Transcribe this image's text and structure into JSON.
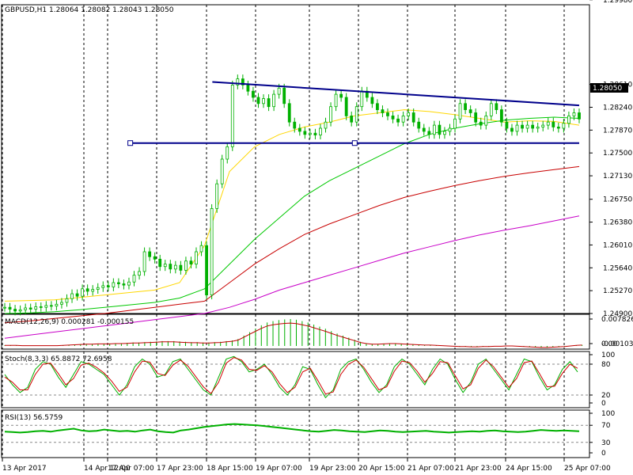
{
  "chart_data": [
    {
      "type": "candlestick",
      "title": "GBPUSD,H1  1.28064 1.28082 1.28043 1.28050",
      "symbol": "GBPUSD",
      "timeframe": "H1",
      "ohlc_last": {
        "open": 1.28064,
        "high": 1.28082,
        "low": 1.28043,
        "close": 1.2805
      },
      "price_label": "1.28050",
      "ylim": [
        1.249,
        1.299
      ],
      "y_ticks": [
        "1.29980",
        "1.28610",
        "1.28240",
        "1.27870",
        "1.27500",
        "1.27130",
        "1.26750",
        "1.26380",
        "1.26010",
        "1.25640",
        "1.25270",
        "1.24900"
      ],
      "y_tick_values": [
        1.2998,
        1.2861,
        1.2824,
        1.2787,
        1.275,
        1.2713,
        1.2675,
        1.2638,
        1.2601,
        1.2564,
        1.2527,
        1.249
      ],
      "x_ticks": [
        "13 Apr 2017",
        "14 Apr 12:00",
        "17 Apr 07:00",
        "17 Apr 23:00",
        "18 Apr 15:00",
        "19 Apr 07:00",
        "19 Apr 23:00",
        "20 Apr 15:00",
        "21 Apr 07:00",
        "21 Apr 23:00",
        "24 Apr 15:00",
        "25 Apr 07:00"
      ],
      "grid": true,
      "trendlines": [
        {
          "name": "upper-resistance",
          "from": [
            43,
            1.2865
          ],
          "to": [
            119,
            1.2827
          ],
          "color": "#00008b"
        },
        {
          "name": "horizontal-support",
          "from": [
            26,
            1.2766
          ],
          "to": [
            119,
            1.2766
          ],
          "color": "#00008b"
        }
      ],
      "candle_closes": [
        1.25,
        1.2497,
        1.2494,
        1.2496,
        1.2499,
        1.2497,
        1.2501,
        1.25,
        1.2503,
        1.2502,
        1.2505,
        1.2508,
        1.2514,
        1.2522,
        1.2518,
        1.253,
        1.2526,
        1.2529,
        1.2532,
        1.2535,
        1.2533,
        1.254,
        1.2538,
        1.2536,
        1.2541,
        1.2552,
        1.2558,
        1.259,
        1.2582,
        1.2578,
        1.2566,
        1.257,
        1.2562,
        1.2568,
        1.256,
        1.2575,
        1.257,
        1.259,
        1.26,
        1.252,
        1.266,
        1.27,
        1.274,
        1.276,
        1.286,
        1.287,
        1.286,
        1.285,
        1.284,
        1.283,
        1.2838,
        1.2825,
        1.2845,
        1.2855,
        1.283,
        1.28,
        1.279,
        1.2785,
        1.278,
        1.2782,
        1.2779,
        1.279,
        1.28,
        1.2825,
        1.2845,
        1.284,
        1.281,
        1.28,
        1.2825,
        1.285,
        1.284,
        1.283,
        1.282,
        1.2815,
        1.281,
        1.2805,
        1.28,
        1.281,
        1.2815,
        1.28,
        1.279,
        1.2785,
        1.278,
        1.2795,
        1.278,
        1.2785,
        1.279,
        1.2805,
        1.283,
        1.282,
        1.2815,
        1.28,
        1.2795,
        1.281,
        1.283,
        1.282,
        1.28,
        1.279,
        1.2785,
        1.2795,
        1.279,
        1.2795,
        1.279,
        1.2792,
        1.2795,
        1.28,
        1.2792,
        1.279,
        1.2798,
        1.281,
        1.2815,
        1.2805
      ],
      "moving_averages": [
        {
          "color": "#ffd700",
          "values": [
            1.251,
            1.2511,
            1.2512,
            1.2516,
            1.252,
            1.2524,
            1.2528,
            1.254,
            1.26,
            1.272,
            1.276,
            1.278,
            1.2792,
            1.28,
            1.281,
            1.2815,
            1.282,
            1.2817,
            1.2812,
            1.2806,
            1.28,
            1.2802,
            1.2801,
            1.2795
          ]
        },
        {
          "color": "#00c800",
          "values": [
            1.249,
            1.2491,
            1.2493,
            1.2496,
            1.25,
            1.2504,
            1.2508,
            1.2515,
            1.253,
            1.257,
            1.261,
            1.2645,
            1.268,
            1.2705,
            1.2725,
            1.2745,
            1.2765,
            1.278,
            1.279,
            1.2797,
            1.2803,
            1.2806,
            1.2808,
            1.2806
          ]
        },
        {
          "color": "#c80000",
          "values": [
            1.2475,
            1.2478,
            1.2482,
            1.2486,
            1.249,
            1.2495,
            1.25,
            1.2505,
            1.251,
            1.254,
            1.257,
            1.2595,
            1.2618,
            1.2635,
            1.265,
            1.2665,
            1.2678,
            1.2688,
            1.2697,
            1.2705,
            1.2712,
            1.2718,
            1.2723,
            1.2728
          ]
        },
        {
          "color": "#c800c8",
          "values": [
            1.245,
            1.2455,
            1.246,
            1.2465,
            1.247,
            1.2475,
            1.248,
            1.2485,
            1.249,
            1.25,
            1.2513,
            1.2528,
            1.254,
            1.2552,
            1.2564,
            1.2576,
            1.2588,
            1.2598,
            1.2608,
            1.2617,
            1.2625,
            1.2632,
            1.264,
            1.2648
          ]
        }
      ]
    },
    {
      "type": "histogram",
      "title": "MACD(12,26,9) 0.000281 -0.000155",
      "y_ticks": [
        "0.007826",
        "0.00",
        "-0.001036"
      ],
      "bars": [
        0.0002,
        0.0002,
        0.0002,
        0.0001,
        0.0001,
        0.0001,
        0.0001,
        0.0001,
        0.0001,
        0.0001,
        0.0002,
        0.0003,
        0.0004,
        0.0005,
        0.0006,
        0.0006,
        0.0007,
        0.0007,
        0.0007,
        0.0008,
        0.0008,
        0.0009,
        0.001,
        0.001,
        0.0011,
        0.0012,
        0.0013,
        0.0014,
        0.0014,
        0.0014,
        0.0013,
        0.0012,
        0.0011,
        0.0011,
        0.001,
        0.001,
        0.0011,
        0.0012,
        0.0014,
        0.0016,
        0.002,
        0.003,
        0.004,
        0.005,
        0.006,
        0.0068,
        0.0072,
        0.0075,
        0.0077,
        0.0078,
        0.0076,
        0.0072,
        0.0068,
        0.0062,
        0.0056,
        0.005,
        0.0043,
        0.0036,
        0.003,
        0.0024,
        0.0018,
        0.0012,
        0.0008,
        0.0006,
        0.0006,
        0.0007,
        0.0008,
        0.0008,
        0.0007,
        0.0006,
        0.0005,
        0.0004,
        0.0003,
        0.0003,
        0.0002,
        0.0001,
        0.0,
        -0.0001,
        -0.0002,
        -0.0002,
        -0.0003,
        -0.0003,
        -0.0002,
        -0.0002,
        -0.0001,
        -0.0001,
        0.0,
        0.0,
        -0.0001,
        -0.0002,
        -0.0003,
        -0.0004,
        -0.0005,
        -0.0005,
        -0.0004,
        -0.0003,
        -0.0002,
        0.0,
        0.0002,
        0.0003
      ]
    },
    {
      "type": "line",
      "title": "Stoch(8,3,3) 65.8872 72.6958",
      "y_ticks": [
        "100",
        "80",
        "20",
        "0"
      ],
      "series": [
        {
          "color": "#00b000",
          "values": [
            60,
            40,
            25,
            35,
            70,
            85,
            80,
            55,
            35,
            60,
            85,
            80,
            70,
            60,
            40,
            20,
            40,
            75,
            90,
            80,
            55,
            60,
            85,
            90,
            70,
            50,
            30,
            20,
            55,
            90,
            95,
            85,
            65,
            70,
            80,
            60,
            35,
            20,
            40,
            75,
            70,
            40,
            15,
            30,
            70,
            85,
            90,
            70,
            45,
            25,
            40,
            75,
            90,
            80,
            60,
            40,
            70,
            90,
            80,
            50,
            25,
            45,
            80,
            90,
            70,
            50,
            30,
            60,
            90,
            85,
            55,
            30,
            40,
            70,
            85,
            65
          ]
        },
        {
          "color": "#d00000",
          "values": [
            55,
            45,
            30,
            30,
            60,
            80,
            82,
            62,
            40,
            52,
            78,
            82,
            74,
            63,
            47,
            27,
            35,
            65,
            86,
            84,
            62,
            58,
            78,
            88,
            76,
            56,
            36,
            23,
            45,
            82,
            93,
            88,
            70,
            68,
            77,
            65,
            42,
            25,
            35,
            65,
            72,
            48,
            22,
            26,
            60,
            80,
            88,
            74,
            52,
            30,
            36,
            66,
            86,
            83,
            66,
            45,
            62,
            85,
            83,
            57,
            32,
            40,
            72,
            88,
            75,
            55,
            35,
            52,
            83,
            86,
            62,
            36,
            37,
            62,
            80,
            72
          ]
        }
      ]
    },
    {
      "type": "line",
      "title": "RSI(13) 56.5759",
      "y_ticks": [
        "100",
        "70",
        "30",
        "0"
      ],
      "series": [
        {
          "color": "#00b000",
          "values": [
            55,
            54,
            53,
            54,
            56,
            57,
            55,
            58,
            60,
            62,
            58,
            56,
            57,
            60,
            58,
            56,
            57,
            55,
            58,
            60,
            56,
            54,
            53,
            58,
            60,
            63,
            66,
            68,
            70,
            72,
            73,
            72,
            71,
            70,
            68,
            66,
            64,
            62,
            60,
            58,
            56,
            55,
            57,
            59,
            58,
            56,
            55,
            54,
            56,
            58,
            57,
            55,
            54,
            55,
            56,
            57,
            55,
            54,
            53,
            54,
            55,
            56,
            55,
            57,
            58,
            56,
            55,
            54,
            55,
            57,
            59,
            58,
            57,
            58,
            57,
            56
          ]
        }
      ]
    }
  ]
}
